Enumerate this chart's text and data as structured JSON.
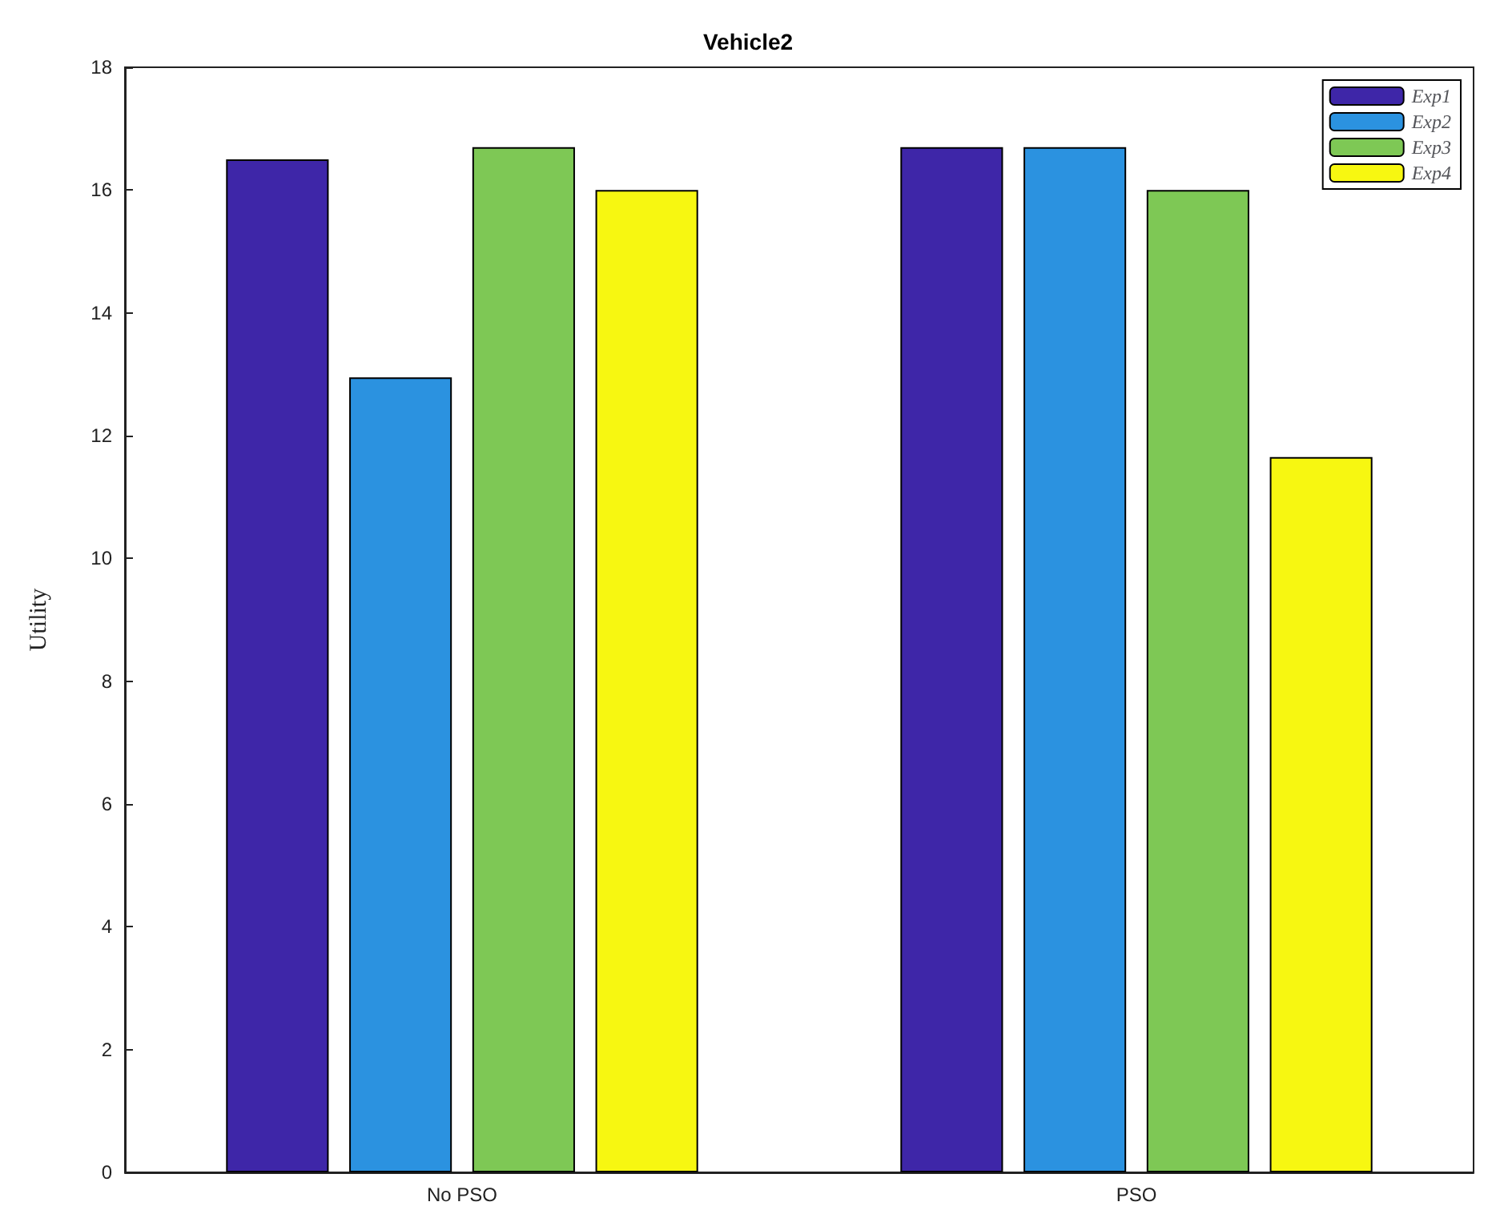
{
  "chart_data": {
    "type": "bar",
    "title": "Vehicle2",
    "ylabel": "Utility",
    "categories": [
      "No PSO",
      "PSO"
    ],
    "series": [
      {
        "name": "Exp1",
        "color": "#3e26a8",
        "values": [
          16.5,
          16.7
        ]
      },
      {
        "name": "Exp2",
        "color": "#2b92e0",
        "values": [
          12.95,
          16.7
        ]
      },
      {
        "name": "Exp3",
        "color": "#7ec855",
        "values": [
          16.7,
          16.0
        ]
      },
      {
        "name": "Exp4",
        "color": "#f7f711",
        "values": [
          16.0,
          11.65
        ]
      }
    ],
    "ylim": [
      0,
      18
    ],
    "yticks": [
      0,
      2,
      4,
      6,
      8,
      10,
      12,
      14,
      16,
      18
    ],
    "grid": false,
    "legend": "top right"
  }
}
